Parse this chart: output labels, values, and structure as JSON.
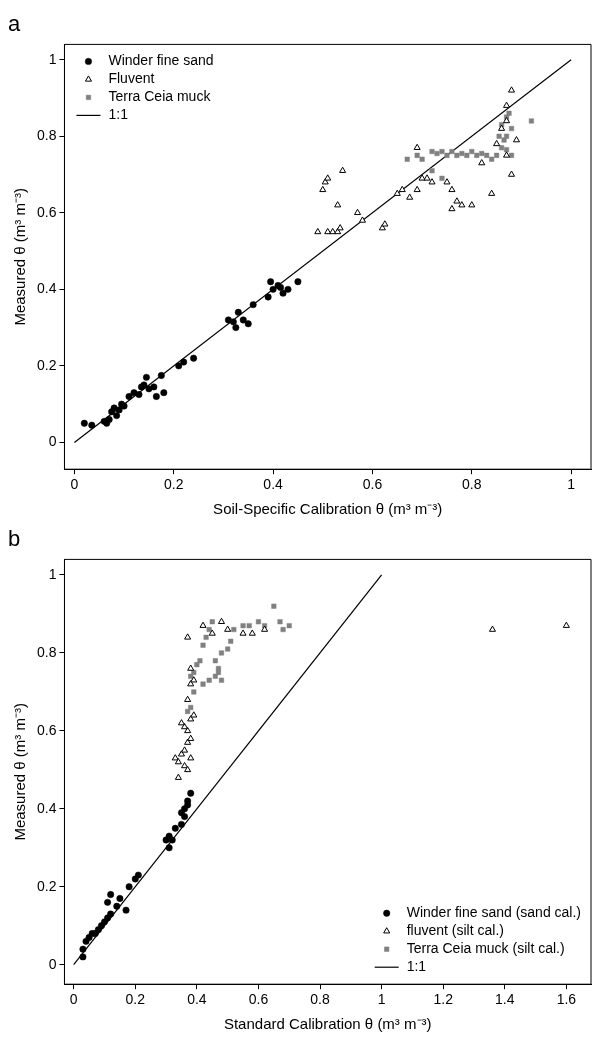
{
  "chart_data": [
    {
      "type": "scatter",
      "title": "a",
      "xlabel": "Soil-Specific Calibration θ (m³ m⁻³)",
      "ylabel": "Measured θ (m³ m⁻³)",
      "xlim": [
        -0.02,
        1.04
      ],
      "ylim": [
        -0.07,
        1.04
      ],
      "xticks": [
        0,
        0.2,
        0.4,
        0.6,
        0.8,
        1
      ],
      "yticks": [
        0,
        0.2,
        0.4,
        0.6,
        0.8,
        1
      ],
      "grid": false,
      "legend": "top left",
      "series": [
        {
          "name": "Winder fine sand",
          "color": "#000000",
          "marker": "circle",
          "x": [
            0.02,
            0.035,
            0.06,
            0.065,
            0.07,
            0.075,
            0.08,
            0.085,
            0.09,
            0.095,
            0.1,
            0.11,
            0.12,
            0.13,
            0.135,
            0.14,
            0.145,
            0.15,
            0.16,
            0.165,
            0.175,
            0.18,
            0.21,
            0.22,
            0.24,
            0.31,
            0.32,
            0.325,
            0.33,
            0.34,
            0.35,
            0.36,
            0.39,
            0.395,
            0.4,
            0.41,
            0.415,
            0.42,
            0.43,
            0.45
          ],
          "values": [
            0.05,
            0.045,
            0.055,
            0.05,
            0.06,
            0.08,
            0.09,
            0.07,
            0.085,
            0.1,
            0.095,
            0.12,
            0.13,
            0.125,
            0.145,
            0.15,
            0.17,
            0.14,
            0.145,
            0.12,
            0.175,
            0.13,
            0.2,
            0.21,
            0.22,
            0.32,
            0.315,
            0.3,
            0.34,
            0.32,
            0.31,
            0.36,
            0.38,
            0.42,
            0.4,
            0.41,
            0.405,
            0.39,
            0.4,
            0.42
          ]
        },
        {
          "name": "Fluvent",
          "color": "#000000",
          "marker": "triangle",
          "x": [
            0.49,
            0.51,
            0.52,
            0.53,
            0.535,
            0.5,
            0.505,
            0.51,
            0.53,
            0.54,
            0.57,
            0.58,
            0.62,
            0.625,
            0.65,
            0.66,
            0.675,
            0.69,
            0.7,
            0.69,
            0.71,
            0.72,
            0.75,
            0.76,
            0.77,
            0.76,
            0.78,
            0.8,
            0.82,
            0.85,
            0.86,
            0.87,
            0.88,
            0.87,
            0.89,
            0.87,
            0.88,
            0.84
          ],
          "values": [
            0.55,
            0.55,
            0.55,
            0.55,
            0.56,
            0.66,
            0.68,
            0.69,
            0.62,
            0.71,
            0.6,
            0.58,
            0.56,
            0.57,
            0.65,
            0.66,
            0.64,
            0.66,
            0.69,
            0.77,
            0.69,
            0.68,
            0.68,
            0.66,
            0.63,
            0.61,
            0.62,
            0.62,
            0.73,
            0.78,
            0.82,
            0.84,
            0.92,
            0.88,
            0.79,
            0.75,
            0.7,
            0.65
          ]
        },
        {
          "name": "Terra Ceia muck",
          "color": "#808080",
          "marker": "square",
          "x": [
            0.67,
            0.69,
            0.7,
            0.72,
            0.73,
            0.74,
            0.75,
            0.76,
            0.77,
            0.78,
            0.79,
            0.8,
            0.81,
            0.82,
            0.83,
            0.84,
            0.85,
            0.86,
            0.87,
            0.88,
            0.72,
            0.74,
            0.855,
            0.86,
            0.87,
            0.875,
            0.88,
            0.87,
            0.865,
            0.92
          ],
          "values": [
            0.74,
            0.75,
            0.74,
            0.76,
            0.755,
            0.76,
            0.75,
            0.76,
            0.75,
            0.755,
            0.75,
            0.76,
            0.75,
            0.755,
            0.75,
            0.74,
            0.75,
            0.77,
            0.765,
            0.75,
            0.71,
            0.69,
            0.8,
            0.83,
            0.85,
            0.86,
            0.82,
            0.8,
            0.79,
            0.84
          ]
        },
        {
          "name": "1:1",
          "type": "line",
          "color": "#000000",
          "marker": "none",
          "x": [
            0,
            1
          ],
          "values": [
            0,
            1
          ]
        }
      ]
    },
    {
      "type": "scatter",
      "title": "b",
      "xlabel": "Standard Calibration θ (m³ m⁻³)",
      "ylabel": "Measured θ (m³ m⁻³)",
      "xlim": [
        -0.03,
        1.68
      ],
      "ylim": [
        -0.05,
        1.04
      ],
      "xticks": [
        0,
        0.2,
        0.4,
        0.6,
        0.8,
        1,
        1.2,
        1.4,
        1.6
      ],
      "yticks": [
        0,
        0.2,
        0.4,
        0.6,
        0.8,
        1
      ],
      "grid": false,
      "legend": "bottom right",
      "series": [
        {
          "name": "Winder fine sand (sand cal.)",
          "color": "#000000",
          "marker": "circle",
          "x": [
            0.03,
            0.03,
            0.04,
            0.05,
            0.06,
            0.07,
            0.08,
            0.09,
            0.1,
            0.11,
            0.12,
            0.11,
            0.12,
            0.14,
            0.15,
            0.17,
            0.18,
            0.2,
            0.21,
            0.3,
            0.31,
            0.32,
            0.31,
            0.33,
            0.35,
            0.35,
            0.36,
            0.37,
            0.37,
            0.38,
            0.36
          ],
          "values": [
            0.02,
            0.04,
            0.06,
            0.07,
            0.08,
            0.08,
            0.09,
            0.1,
            0.11,
            0.12,
            0.13,
            0.16,
            0.18,
            0.15,
            0.17,
            0.14,
            0.2,
            0.22,
            0.23,
            0.32,
            0.33,
            0.32,
            0.3,
            0.35,
            0.36,
            0.39,
            0.4,
            0.42,
            0.41,
            0.44,
            0.38
          ]
        },
        {
          "name": "fluvent (silt cal.)",
          "color": "#000000",
          "marker": "triangle",
          "x": [
            0.33,
            0.34,
            0.35,
            0.36,
            0.37,
            0.38,
            0.34,
            0.36,
            0.37,
            0.38,
            0.37,
            0.36,
            0.35,
            0.38,
            0.39,
            0.37,
            0.38,
            0.39,
            0.38,
            0.37,
            0.42,
            0.45,
            0.48,
            0.5,
            0.55,
            0.58,
            0.62,
            1.36,
            1.6
          ],
          "values": [
            0.53,
            0.52,
            0.54,
            0.51,
            0.5,
            0.53,
            0.48,
            0.55,
            0.57,
            0.58,
            0.6,
            0.61,
            0.62,
            0.63,
            0.64,
            0.68,
            0.72,
            0.73,
            0.76,
            0.84,
            0.87,
            0.85,
            0.88,
            0.86,
            0.85,
            0.85,
            0.86,
            0.86,
            0.87
          ]
        },
        {
          "name": "Terra Ceia muck (silt cal.)",
          "color": "#808080",
          "marker": "square",
          "x": [
            0.37,
            0.38,
            0.39,
            0.38,
            0.39,
            0.4,
            0.41,
            0.42,
            0.43,
            0.44,
            0.45,
            0.42,
            0.44,
            0.46,
            0.47,
            0.48,
            0.47,
            0.46,
            0.48,
            0.5,
            0.51,
            0.52,
            0.55,
            0.57,
            0.6,
            0.62,
            0.65,
            0.67,
            0.7,
            0.68
          ],
          "values": [
            0.65,
            0.66,
            0.7,
            0.74,
            0.75,
            0.77,
            0.78,
            0.82,
            0.84,
            0.86,
            0.88,
            0.72,
            0.73,
            0.74,
            0.75,
            0.73,
            0.76,
            0.78,
            0.8,
            0.81,
            0.83,
            0.86,
            0.87,
            0.87,
            0.88,
            0.87,
            0.92,
            0.88,
            0.87,
            0.86
          ]
        },
        {
          "name": "1:1",
          "type": "line",
          "color": "#000000",
          "marker": "none",
          "x": [
            0,
            1
          ],
          "values": [
            0,
            1
          ]
        }
      ]
    }
  ]
}
